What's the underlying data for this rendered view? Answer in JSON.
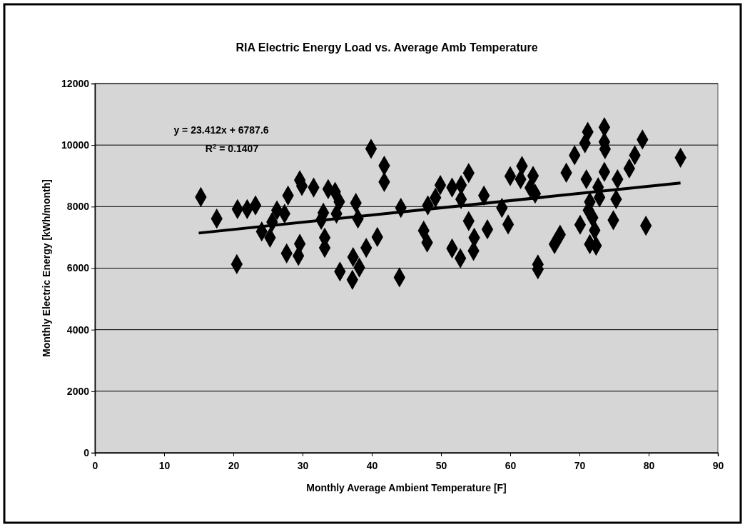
{
  "chart_data": {
    "type": "scatter",
    "title": "RIA Electric Energy Load vs. Average Amb Temperature",
    "xlabel": "Monthly Average Ambient Temperature [F]",
    "ylabel": "Monthly Electric Energy [kWh/month]",
    "xlim": [
      0,
      90
    ],
    "xticks": [
      0,
      10,
      20,
      30,
      40,
      50,
      60,
      70,
      80,
      90
    ],
    "ylim": [
      0,
      12000
    ],
    "yticks": [
      0,
      2000,
      4000,
      6000,
      8000,
      10000,
      12000
    ],
    "grid": "y",
    "annotations": [
      "y = 23.412x + 6787.6",
      "R$^{2}$ = 0.1407"
    ],
    "series": [
      {
        "marker": "diamond",
        "color": "#000000",
        "x": [
          15.3,
          17.6,
          20.5,
          20.6,
          22.0,
          23.2,
          26.3,
          27.4,
          25.6,
          24.1,
          25.3,
          29.6,
          29.9,
          27.9,
          29.6,
          27.7,
          29.4,
          39.9,
          41.8,
          41.8,
          31.6,
          33.7,
          34.7,
          35.3,
          37.7,
          33.0,
          34.9,
          32.7,
          38.0,
          44.2,
          33.2,
          33.2,
          40.8,
          39.2,
          37.3,
          38.2,
          35.4,
          37.2,
          44.0,
          49.9,
          51.6,
          52.9,
          54.0,
          49.2,
          48.1,
          52.9,
          56.2,
          58.8,
          54.0,
          56.7,
          59.7,
          47.5,
          48.0,
          54.8,
          51.6,
          54.7,
          52.8,
          71.2,
          73.6,
          79.1,
          70.8,
          73.6,
          73.7,
          69.3,
          78.0,
          84.6,
          77.2,
          73.6,
          68.1,
          61.7,
          60.0,
          61.5,
          63.3,
          71.0,
          75.5,
          62.9,
          63.6,
          72.7,
          72.9,
          75.3,
          71.5,
          71.3,
          71.9,
          70.1,
          74.9,
          79.6,
          72.2,
          67.2,
          66.4,
          71.5,
          72.4,
          64.0,
          64.0
        ],
        "values": [
          8310,
          7610,
          6130,
          7920,
          7920,
          8040,
          7880,
          7770,
          7500,
          7190,
          6990,
          8860,
          8670,
          8360,
          6790,
          6480,
          6400,
          9880,
          9330,
          8800,
          8620,
          8570,
          8480,
          8160,
          8120,
          7800,
          7770,
          7570,
          7610,
          7960,
          6990,
          6660,
          7010,
          6660,
          6360,
          6020,
          5890,
          5620,
          5700,
          8700,
          8620,
          8700,
          9090,
          8290,
          8040,
          8240,
          8360,
          7960,
          7530,
          7260,
          7420,
          7220,
          6830,
          6990,
          6640,
          6560,
          6320,
          10430,
          10580,
          10180,
          10060,
          10100,
          9870,
          9670,
          9670,
          9590,
          9240,
          9130,
          9100,
          9320,
          8990,
          8890,
          9000,
          8890,
          8890,
          8610,
          8420,
          8630,
          8300,
          8240,
          8150,
          7880,
          7640,
          7410,
          7560,
          7380,
          7230,
          7090,
          6780,
          6780,
          6730,
          6120,
          5960
        ]
      },
      {
        "type": "line",
        "marker": "none",
        "color": "#000000",
        "x": [
          15.0,
          84.6
        ],
        "values": [
          7140,
          8770
        ]
      }
    ]
  }
}
